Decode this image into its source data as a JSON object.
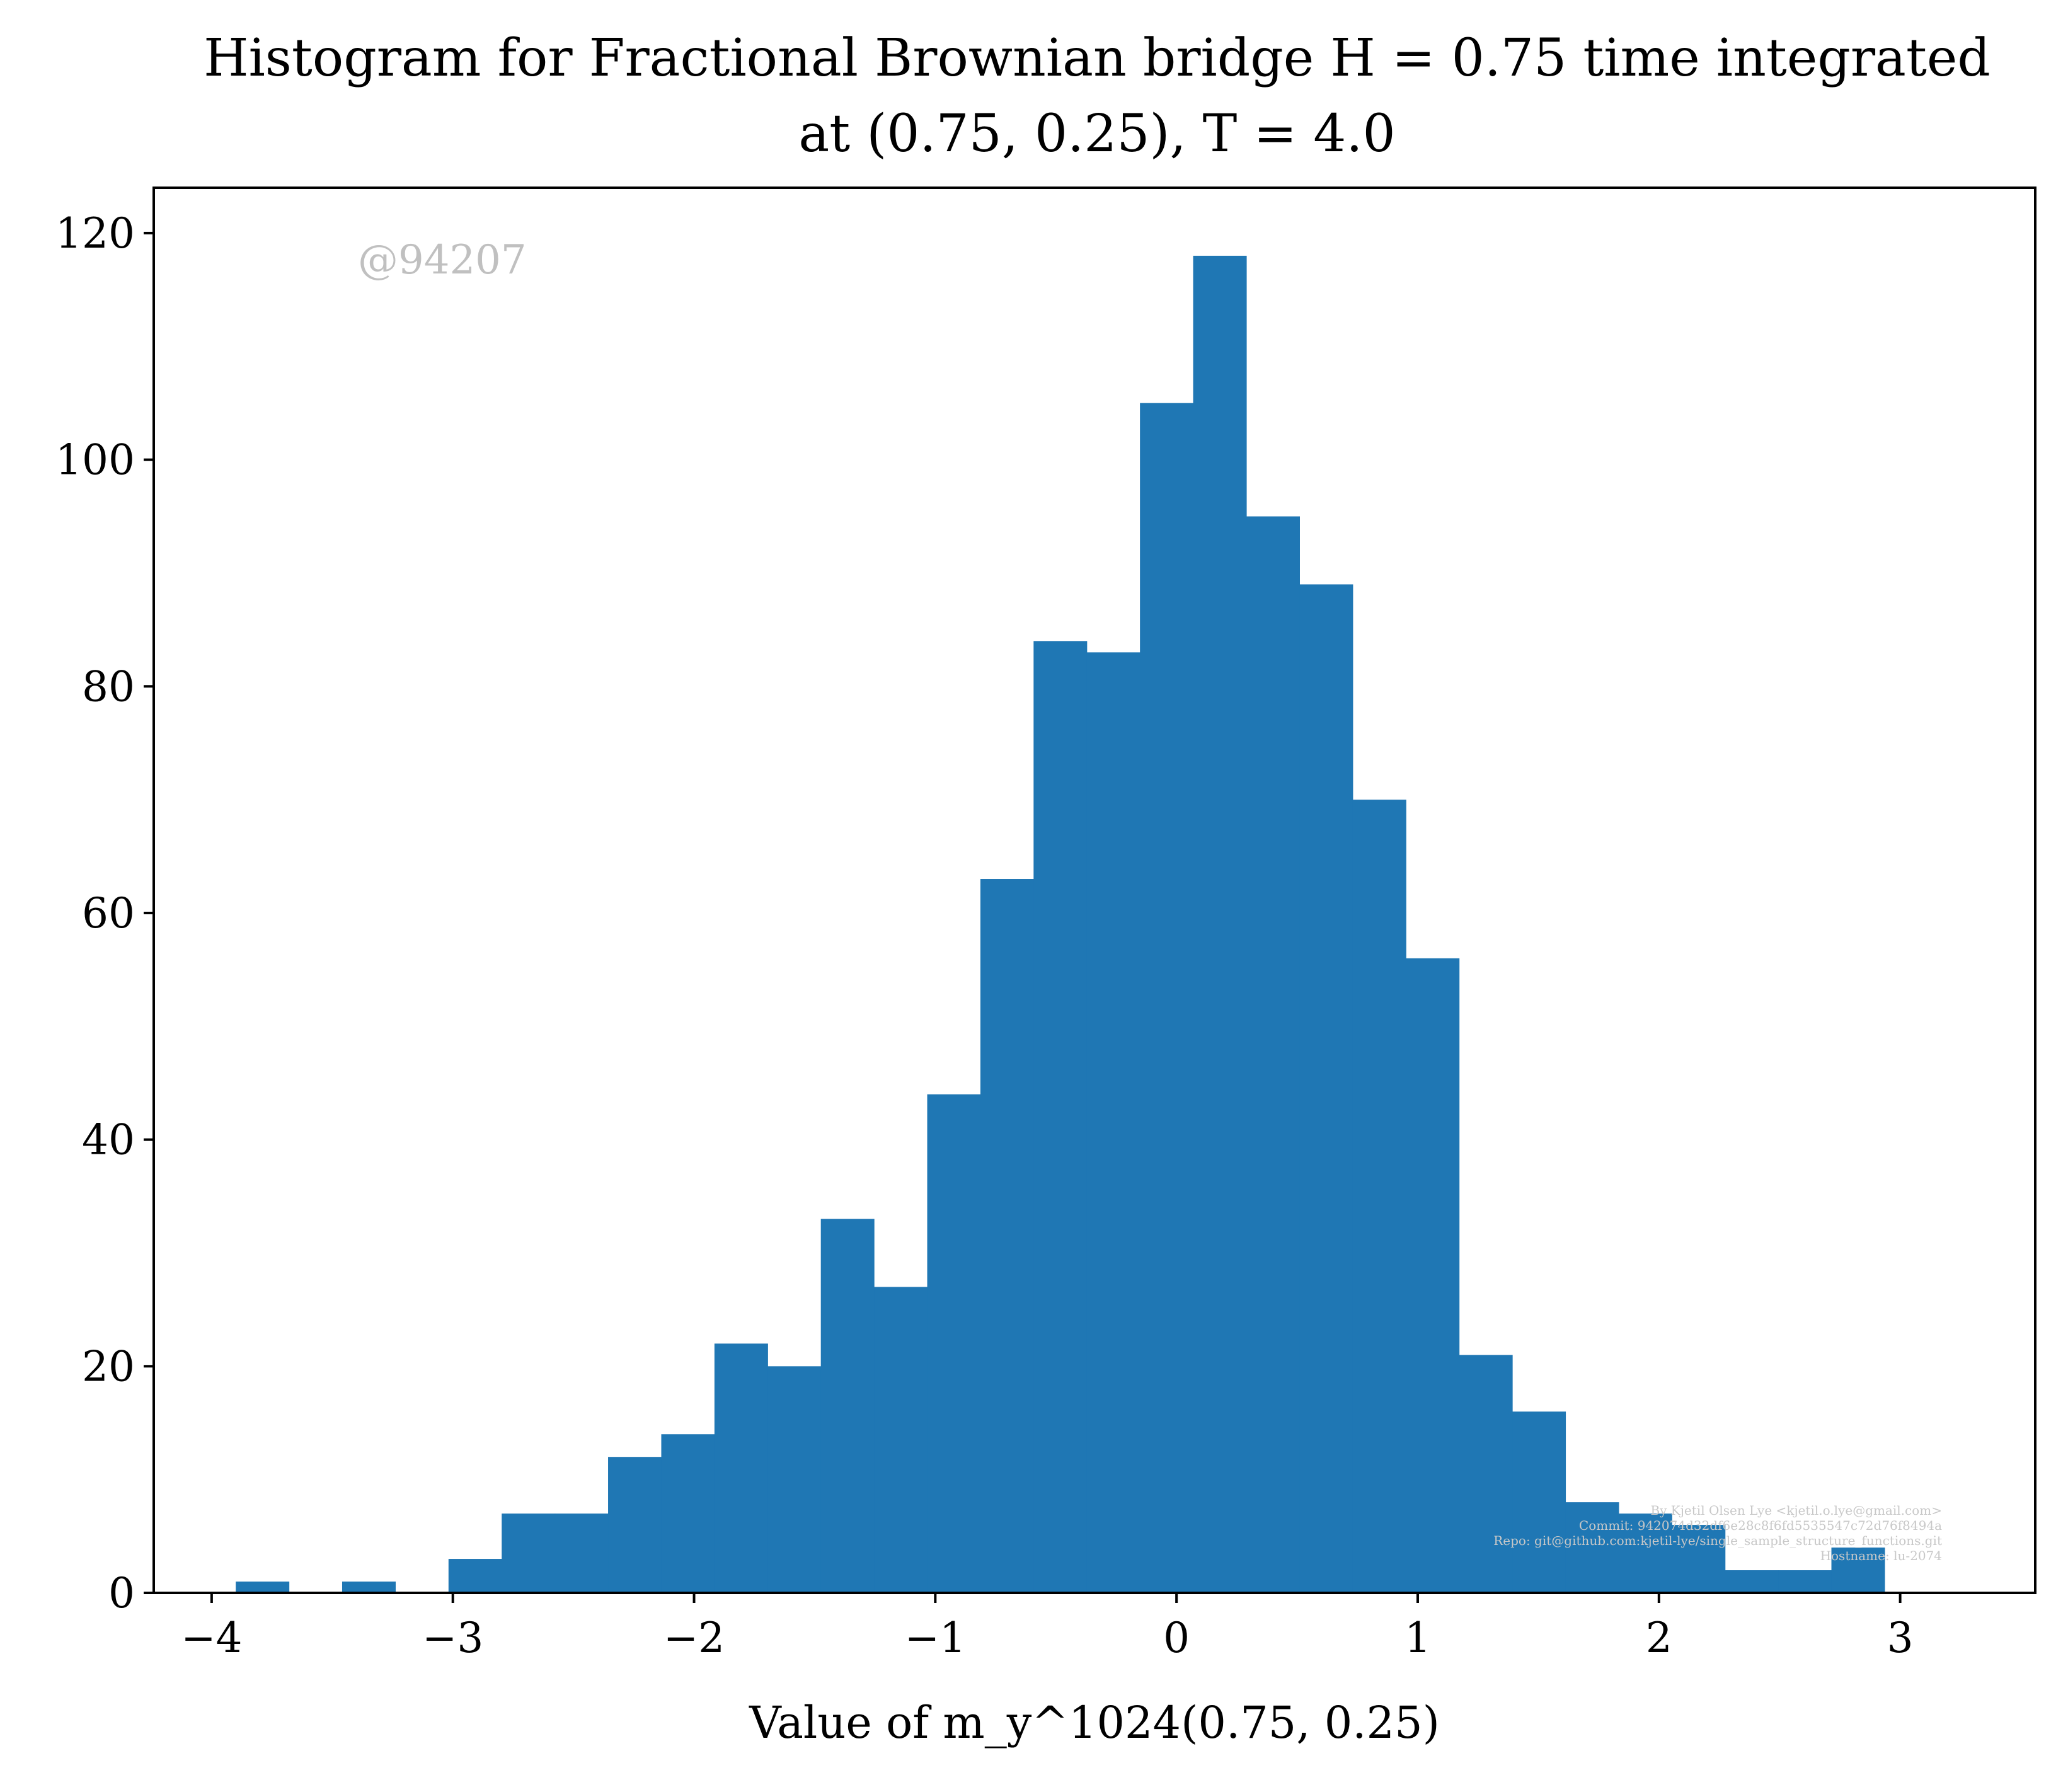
{
  "chart_data": {
    "type": "bar",
    "title_line1": "Histogram for Fractional Brownian bridge H = 0.75 time integrated",
    "title_line2": "at (0.75, 0.25), T = 4.0",
    "xlabel": "Value of m_y^1024(0.75, 0.25)",
    "ylabel": "",
    "xlim": [
      -4.24,
      3.56
    ],
    "ylim": [
      0,
      124
    ],
    "xticks": [
      -4,
      -3,
      -2,
      -1,
      0,
      1,
      2,
      3
    ],
    "xtick_labels": [
      "−4",
      "−3",
      "−2",
      "−1",
      "0",
      "1",
      "2",
      "3"
    ],
    "yticks": [
      0,
      20,
      40,
      60,
      80,
      100,
      120
    ],
    "ytick_labels": [
      "0",
      "20",
      "40",
      "60",
      "80",
      "100",
      "120"
    ],
    "bin_start": -3.9,
    "bin_width": 0.2205,
    "values": [
      1,
      0,
      1,
      0,
      3,
      7,
      7,
      12,
      14,
      22,
      20,
      33,
      27,
      44,
      63,
      84,
      83,
      105,
      118,
      95,
      89,
      70,
      56,
      21,
      16,
      8,
      7,
      6,
      2,
      2,
      4
    ],
    "bar_color": "#1f77b4",
    "grid": false,
    "legend": "none",
    "watermark": "@94207",
    "footnote": [
      "By Kjetil Olsen Lye <kjetil.o.lye@gmail.com>",
      "Commit: 942074d32df6e28c8f6fd5535547c72d76f8494a",
      "Repo: git@github.com:kjetil-lye/single_sample_structure_functions.git",
      "Hostname: lu-2074"
    ]
  }
}
